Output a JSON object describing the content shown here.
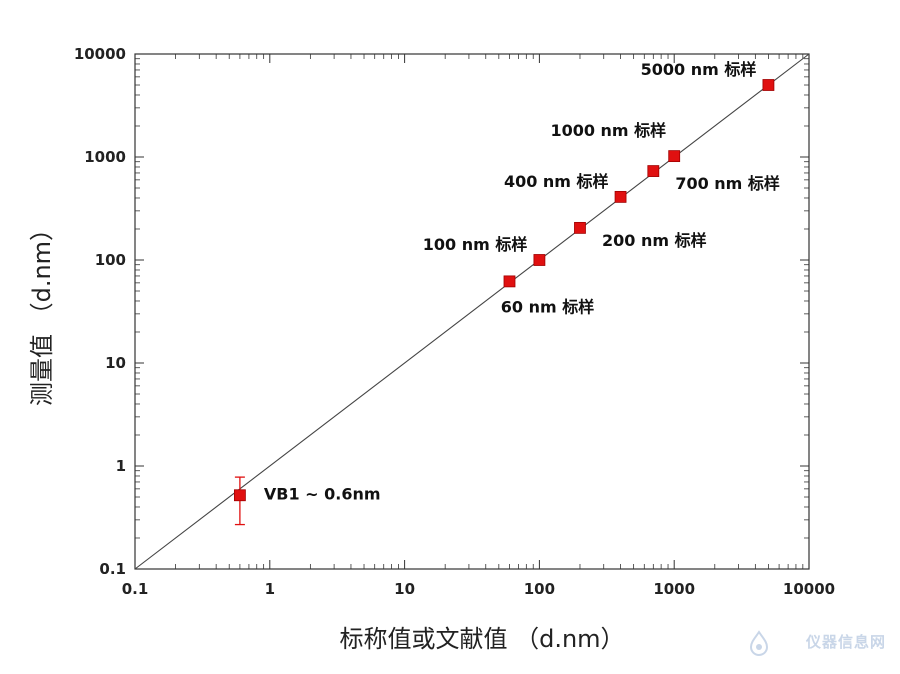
{
  "chart_data": {
    "type": "scatter",
    "x_scale": "log",
    "y_scale": "log",
    "xlim": [
      0.1,
      10000
    ],
    "ylim": [
      0.1,
      10000
    ],
    "xlabel": "标称值或文献值 （d.nm）",
    "ylabel": "测量值 （d.nm）",
    "x_tick_labels": [
      "0.1",
      "1",
      "10",
      "100",
      "1000",
      "10000"
    ],
    "y_tick_labels": [
      "0.1",
      "1",
      "10",
      "100",
      "1000",
      "10000"
    ],
    "grid": false,
    "reference_line": {
      "type": "y=x"
    },
    "marker_color": "#e01010",
    "series": [
      {
        "points": [
          {
            "x": 0.6,
            "y": 0.52,
            "err_low": 0.27,
            "err_high": 0.78,
            "label": "VB1 ~ 0.6nm",
            "label_pos": "right"
          },
          {
            "x": 60,
            "y": 62,
            "label": "60 nm 标样",
            "label_pos": "below"
          },
          {
            "x": 100,
            "y": 100,
            "label": "100 nm 标样",
            "label_pos": "left"
          },
          {
            "x": 200,
            "y": 205,
            "label": "200 nm 标样",
            "label_pos": "below-right"
          },
          {
            "x": 400,
            "y": 410,
            "label": "400 nm 标样",
            "label_pos": "left"
          },
          {
            "x": 700,
            "y": 730,
            "label": "700 nm 标样",
            "label_pos": "below-right"
          },
          {
            "x": 1000,
            "y": 1020,
            "label": "1000 nm 标样",
            "label_pos": "above-left"
          },
          {
            "x": 5000,
            "y": 5000,
            "label": "5000 nm 标样",
            "label_pos": "left"
          }
        ]
      }
    ]
  },
  "watermark": {
    "text": "仪器信息网"
  }
}
